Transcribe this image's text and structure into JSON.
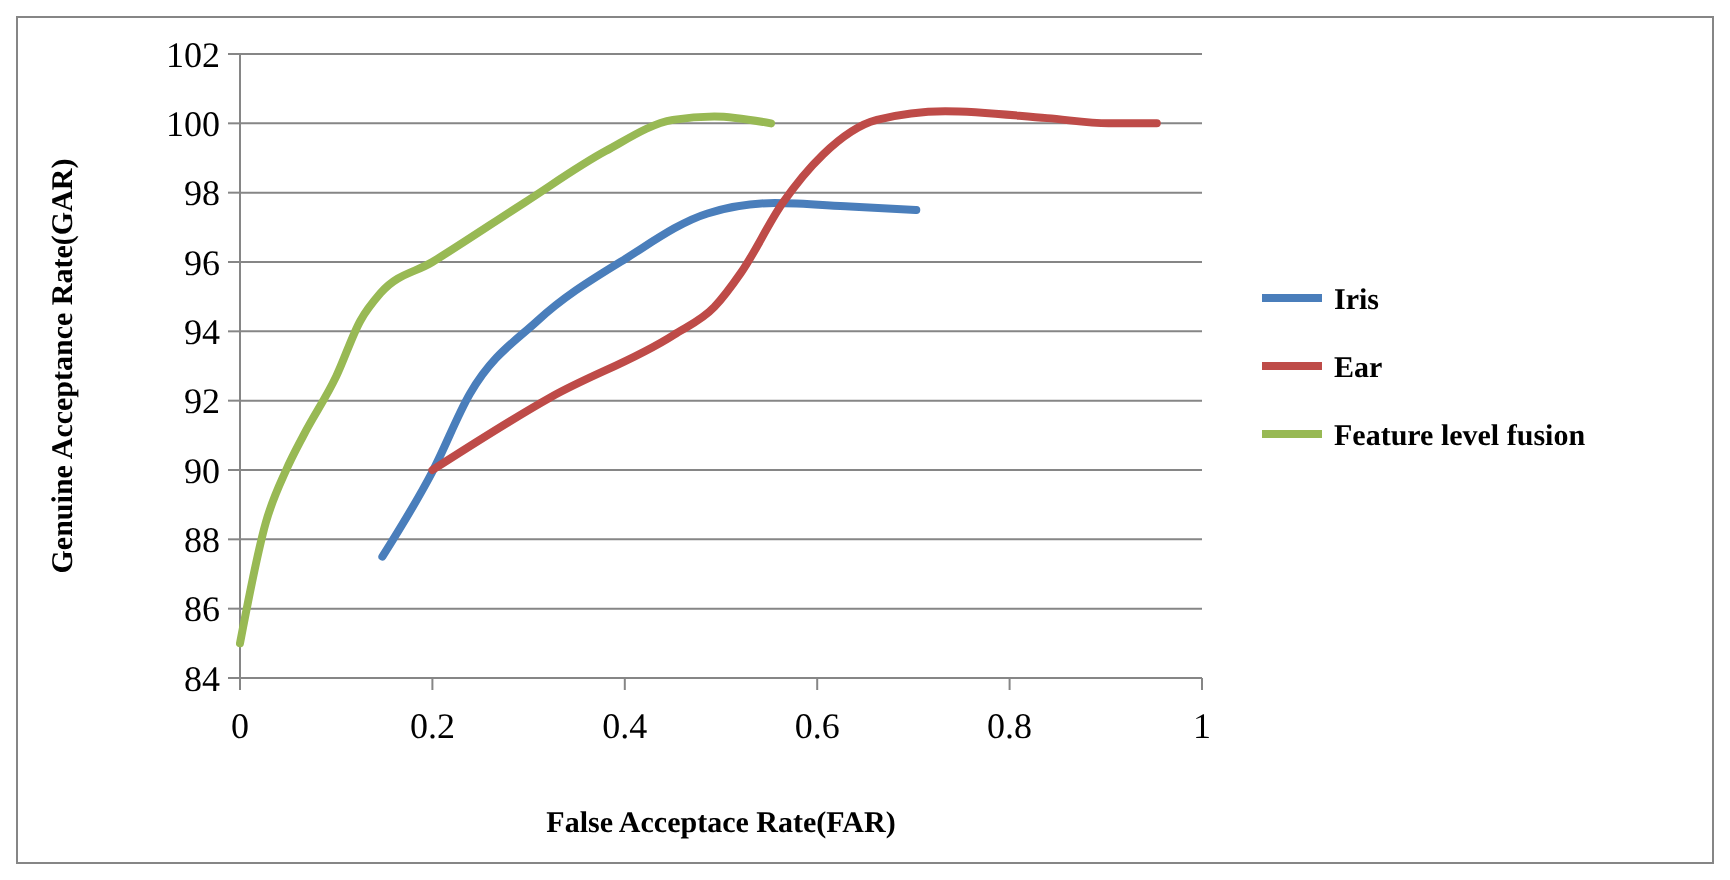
{
  "chart_data": {
    "type": "line",
    "xlabel": "False Acceptace Rate(FAR)",
    "ylabel": "Genuine Acceptance Rate(GAR)",
    "xlim": [
      0,
      1
    ],
    "xticks": [
      0,
      0.2,
      0.4,
      0.6,
      0.8,
      1
    ],
    "ylim": [
      84,
      102
    ],
    "yticks": [
      84,
      86,
      88,
      90,
      92,
      94,
      96,
      98,
      100,
      102
    ],
    "grid": "y",
    "legend": "right",
    "marker": "none",
    "line_style": "solid",
    "series": [
      {
        "name": "Iris",
        "color": "#4a7ebb",
        "x": [
          0.148,
          0.2,
          0.239,
          0.309,
          0.401,
          0.486,
          0.556,
          0.634,
          0.703
        ],
        "values": [
          87.5,
          89.95,
          92.2,
          94.3,
          96.1,
          97.4,
          97.7,
          97.6,
          97.5
        ]
      },
      {
        "name": "Ear",
        "color": "#be4b48",
        "x": [
          0.2,
          0.323,
          0.451,
          0.493,
          0.521,
          0.564,
          0.606,
          0.662,
          0.733,
          0.839,
          0.903,
          0.953
        ],
        "values": [
          90,
          92.1,
          93.9,
          94.7,
          95.7,
          97.7,
          99.1,
          100.1,
          100.35,
          100.15,
          100,
          100
        ]
      },
      {
        "name": "Feature level fusion",
        "color": "#98b954",
        "x": [
          0,
          0.027,
          0.048,
          0.066,
          0.1,
          0.125,
          0.146,
          0.2,
          0.295,
          0.38,
          0.45,
          0.493,
          0.552
        ],
        "values": [
          85,
          88.5,
          90,
          91,
          92.7,
          94.3,
          95.1,
          96,
          97.7,
          99.2,
          100.1,
          100.2,
          100
        ]
      }
    ]
  }
}
